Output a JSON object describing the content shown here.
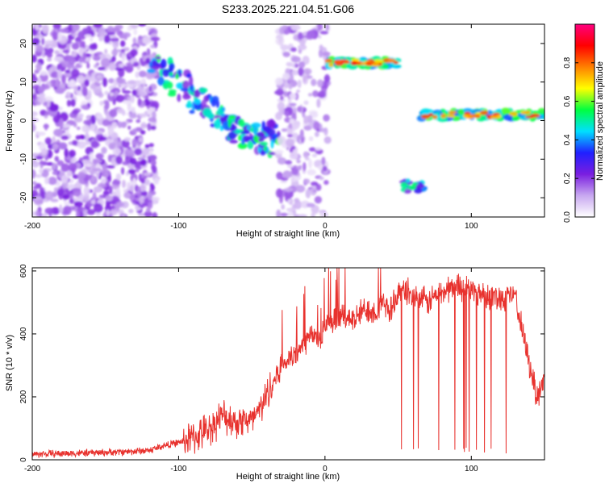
{
  "title": "S233.2025.221.04.51.G06",
  "colors": {
    "snr_line": "#e8322e",
    "background": "#ffffff",
    "axis": "#000000"
  },
  "chart_data": [
    {
      "type": "heatmap",
      "title": "S233.2025.221.04.51.G06",
      "xlabel": "Height of straight line (km)",
      "ylabel": "Frequency (Hz)",
      "xlim": [
        -200,
        150
      ],
      "ylim": [
        -25,
        25
      ],
      "xticks": [
        -200,
        -100,
        0,
        100
      ],
      "yticks": [
        20,
        10,
        0,
        -10,
        -20
      ],
      "colorbar": {
        "label": "Normalized spectral amplitude",
        "range": [
          0,
          1
        ],
        "ticks": [
          "0.0",
          "0.2",
          "0.4",
          "0.6",
          "0.8"
        ],
        "tick_values": [
          0.0,
          0.2,
          0.4,
          0.6,
          0.8
        ],
        "colormap": [
          "#ffffff",
          "#c8a8f0",
          "#7a1ee0",
          "#2020ff",
          "#00e0ff",
          "#00ff40",
          "#ffff00",
          "#ff8000",
          "#ff0000",
          "#ff0080"
        ]
      },
      "features": [
        {
          "name": "noise-scatter",
          "x": [
            -200,
            -115
          ],
          "y": [
            -25,
            25
          ],
          "amplitude": 0.12
        },
        {
          "name": "sloping-track",
          "points": [
            [
              -118,
              14
            ],
            [
              -100,
              10
            ],
            [
              -85,
              4
            ],
            [
              -70,
              0
            ],
            [
              -55,
              -3
            ],
            [
              -42,
              -6
            ],
            [
              -34,
              -3
            ]
          ],
          "amplitude": 0.3
        },
        {
          "name": "noise-column",
          "x": [
            -32,
            2
          ],
          "y": [
            -25,
            25
          ],
          "amplitude": 0.1
        },
        {
          "name": "horizontal-band-upper",
          "x": [
            2,
            50
          ],
          "y": 15,
          "amplitude": 0.85
        },
        {
          "name": "blob-lower",
          "x": [
            53,
            67
          ],
          "y": -17,
          "amplitude": 0.55
        },
        {
          "name": "horizontal-band-right",
          "x": [
            66,
            150
          ],
          "y": 1.5,
          "amplitude": 0.85
        }
      ]
    },
    {
      "type": "line",
      "xlabel": "Height of straight line (km)",
      "ylabel": "SNR (10 * v/v)",
      "xlim": [
        -200,
        150
      ],
      "ylim": [
        0,
        610
      ],
      "xticks": [
        -200,
        -100,
        0,
        100
      ],
      "yticks": [
        0,
        200,
        400,
        600
      ],
      "series": [
        {
          "name": "SNR",
          "x": [
            -200,
            -180,
            -160,
            -140,
            -120,
            -110,
            -100,
            -90,
            -80,
            -70,
            -65,
            -60,
            -55,
            -50,
            -45,
            -40,
            -35,
            -30,
            -25,
            -20,
            -15,
            -10,
            -5,
            0,
            5,
            10,
            15,
            20,
            25,
            30,
            35,
            40,
            45,
            50,
            55,
            60,
            65,
            70,
            75,
            80,
            85,
            90,
            95,
            100,
            105,
            110,
            115,
            120,
            125,
            130,
            135,
            140,
            145,
            150
          ],
          "y": [
            18,
            20,
            22,
            25,
            30,
            45,
            55,
            70,
            95,
            140,
            130,
            120,
            130,
            120,
            150,
            210,
            250,
            300,
            320,
            330,
            360,
            400,
            380,
            420,
            430,
            450,
            460,
            440,
            470,
            480,
            470,
            500,
            470,
            530,
            540,
            520,
            510,
            500,
            520,
            530,
            545,
            555,
            550,
            540,
            530,
            525,
            520,
            515,
            520,
            525,
            400,
            300,
            200,
            260
          ]
        }
      ]
    }
  ]
}
